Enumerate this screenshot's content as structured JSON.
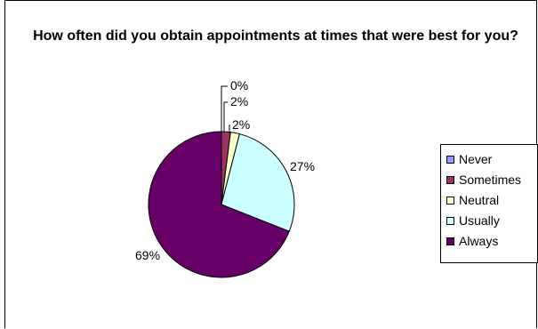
{
  "chart_data": {
    "type": "pie",
    "title": "How often did you obtain appointments at times that were best for you?",
    "categories": [
      "Never",
      "Sometimes",
      "Neutral",
      "Usually",
      "Always"
    ],
    "values": [
      0,
      2,
      2,
      27,
      69
    ],
    "labels": [
      "0%",
      "2%",
      "2%",
      "27%",
      "69%"
    ],
    "colors": [
      "#9999ff",
      "#993366",
      "#ffffcc",
      "#ccffff",
      "#660066"
    ],
    "legend_position": "right"
  }
}
